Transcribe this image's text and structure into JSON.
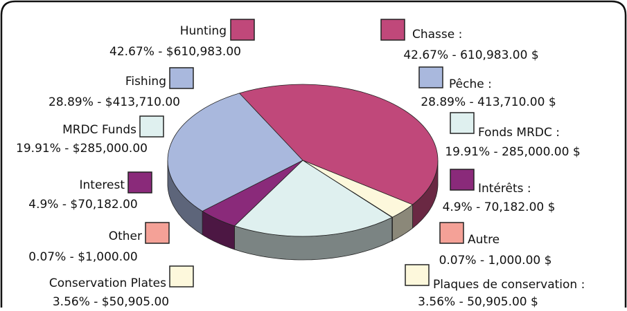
{
  "chart_data": {
    "type": "pie",
    "categories": [
      "Hunting",
      "Fishing",
      "MRDC Funds",
      "Interest",
      "Other",
      "Conservation Plates"
    ],
    "categories_fr": [
      "Chasse :",
      "Pêche :",
      "Fonds MRDC :",
      "Intérêts :",
      "Autre",
      "Plaques de conservation :"
    ],
    "values": [
      42.67,
      28.89,
      19.91,
      4.9,
      0.07,
      3.56
    ],
    "value_labels": [
      "42.67% - $610,983.00",
      "28.89% - $413,710.00",
      "19.91% - $285,000.00",
      "4.9% - $70,182.00",
      "0.07% - $1,000.00",
      "3.56% - $50,905.00"
    ],
    "value_labels_fr": [
      "42.67% - 610,983.00 $",
      "28.89% - 413,710.00 $",
      "19.91% - 285,000.00 $",
      "4.9% - 70,182.00 $",
      "0.07% - 1,000.00 $",
      "3.56% - 50,905.00 $"
    ],
    "colors": [
      "#c0487a",
      "#a9b8dd",
      "#dff0ef",
      "#8a2a7a",
      "#f4a197",
      "#fdf8dc"
    ]
  }
}
